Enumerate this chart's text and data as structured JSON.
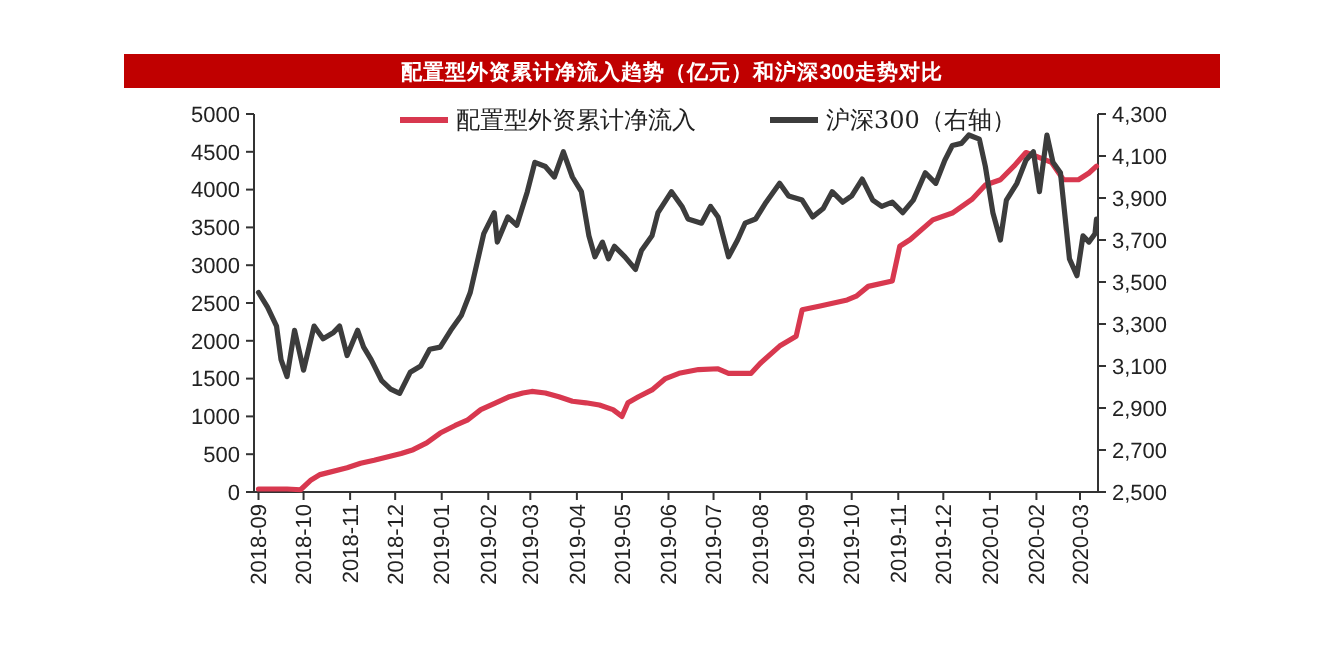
{
  "chart_data": {
    "type": "line",
    "title": "配置型外资累计净流入趋势（亿元）和沪深300走势对比",
    "xlim": [
      "2018-08-29",
      "2020-03-13"
    ],
    "xticks": [
      "2018-09",
      "2018-10",
      "2018-11",
      "2018-12",
      "2019-01",
      "2019-02",
      "2019-03",
      "2019-04",
      "2019-05",
      "2019-06",
      "2019-07",
      "2019-08",
      "2019-09",
      "2019-10",
      "2019-11",
      "2019-12",
      "2020-01",
      "2020-02",
      "2020-03"
    ],
    "ylim": [
      0,
      5000
    ],
    "yticks": [
      0,
      500,
      1000,
      1500,
      2000,
      2500,
      3000,
      3500,
      4000,
      4500,
      5000
    ],
    "y2lim": [
      2500,
      4300
    ],
    "y2ticks": [
      {
        "value": 2500,
        "label": "2,500"
      },
      {
        "value": 2700,
        "label": "2,700"
      },
      {
        "value": 2900,
        "label": "2,900"
      },
      {
        "value": 3100,
        "label": "3,100"
      },
      {
        "value": 3300,
        "label": "3,300"
      },
      {
        "value": 3500,
        "label": "3,500"
      },
      {
        "value": 3700,
        "label": "3,700"
      },
      {
        "value": 3900,
        "label": "3,900"
      },
      {
        "value": 4100,
        "label": "4,100"
      },
      {
        "value": 4300,
        "label": "4,300"
      }
    ],
    "grid": false,
    "legend": "top",
    "marker": "none",
    "line_style": "solid",
    "series": [
      {
        "name": "配置型外资累计净流入",
        "color": "#d8384f",
        "axis": "y",
        "x": [
          "2018-09-01",
          "2018-09-20",
          "2018-09-29",
          "2018-10-06",
          "2018-10-12",
          "2018-10-30",
          "2018-11-08",
          "2018-11-17",
          "2018-12-05",
          "2018-12-13",
          "2018-12-22",
          "2018-12-31",
          "2019-01-10",
          "2019-01-18",
          "2019-01-27",
          "2019-02-06",
          "2019-02-15",
          "2019-02-24",
          "2019-03-02",
          "2019-03-11",
          "2019-03-20",
          "2019-03-29",
          "2019-04-07",
          "2019-04-16",
          "2019-04-25",
          "2019-05-01",
          "2019-05-05",
          "2019-05-12",
          "2019-05-21",
          "2019-05-30",
          "2019-06-08",
          "2019-06-21",
          "2019-07-04",
          "2019-07-11",
          "2019-07-26",
          "2019-08-01",
          "2019-08-14",
          "2019-08-25",
          "2019-08-29",
          "2019-09-10",
          "2019-09-28",
          "2019-10-04",
          "2019-10-12",
          "2019-10-28",
          "2019-11-02",
          "2019-11-09",
          "2019-11-24",
          "2019-12-07",
          "2019-12-20",
          "2019-12-29",
          "2020-01-08",
          "2020-01-17",
          "2020-01-25",
          "2020-02-01",
          "2020-02-11",
          "2020-02-19",
          "2020-02-29",
          "2020-03-07",
          "2020-03-12"
        ],
        "values": [
          40,
          40,
          30,
          160,
          230,
          320,
          380,
          420,
          510,
          560,
          650,
          780,
          880,
          950,
          1090,
          1180,
          1260,
          1310,
          1330,
          1310,
          1260,
          1200,
          1180,
          1150,
          1090,
          1000,
          1180,
          1260,
          1350,
          1500,
          1570,
          1620,
          1630,
          1570,
          1570,
          1700,
          1930,
          2060,
          2410,
          2460,
          2540,
          2590,
          2720,
          2790,
          3250,
          3340,
          3600,
          3690,
          3870,
          4060,
          4130,
          4310,
          4490,
          4440,
          4360,
          4130,
          4130,
          4220,
          4310
        ]
      },
      {
        "name": "沪深300（右轴）",
        "color": "#3c3c3c",
        "axis": "y2",
        "x": [
          "2018-09-01",
          "2018-09-07",
          "2018-09-13",
          "2018-09-16",
          "2018-09-20",
          "2018-09-25",
          "2018-10-01",
          "2018-10-08",
          "2018-10-14",
          "2018-10-21",
          "2018-10-25",
          "2018-10-30",
          "2018-11-06",
          "2018-11-10",
          "2018-11-15",
          "2018-11-22",
          "2018-11-28",
          "2018-12-04",
          "2018-12-11",
          "2018-12-18",
          "2018-12-24",
          "2018-12-31",
          "2019-01-07",
          "2019-01-14",
          "2019-01-20",
          "2019-01-29",
          "2019-02-05",
          "2019-02-07",
          "2019-02-14",
          "2019-02-20",
          "2019-02-27",
          "2019-03-04",
          "2019-03-11",
          "2019-03-17",
          "2019-03-23",
          "2019-03-29",
          "2019-04-04",
          "2019-04-09",
          "2019-04-13",
          "2019-04-18",
          "2019-04-22",
          "2019-04-26",
          "2019-05-03",
          "2019-05-10",
          "2019-05-14",
          "2019-05-21",
          "2019-05-25",
          "2019-06-03",
          "2019-06-10",
          "2019-06-14",
          "2019-06-23",
          "2019-06-29",
          "2019-07-04",
          "2019-07-11",
          "2019-07-17",
          "2019-07-22",
          "2019-07-29",
          "2019-08-05",
          "2019-08-14",
          "2019-08-20",
          "2019-08-29",
          "2019-09-05",
          "2019-09-12",
          "2019-09-18",
          "2019-09-25",
          "2019-10-01",
          "2019-10-08",
          "2019-10-15",
          "2019-10-21",
          "2019-10-28",
          "2019-11-04",
          "2019-11-11",
          "2019-11-19",
          "2019-11-26",
          "2019-12-02",
          "2019-12-07",
          "2019-12-13",
          "2019-12-18",
          "2019-12-25",
          "2019-12-29",
          "2020-01-03",
          "2020-01-08",
          "2020-01-12",
          "2020-01-19",
          "2020-01-25",
          "2020-01-30",
          "2020-02-03",
          "2020-02-08",
          "2020-02-12",
          "2020-02-17",
          "2020-02-23",
          "2020-02-28",
          "2020-03-03",
          "2020-03-07",
          "2020-03-11",
          "2020-03-12"
        ],
        "values": [
          3450,
          3380,
          3290,
          3130,
          3050,
          3270,
          3080,
          3290,
          3230,
          3260,
          3290,
          3150,
          3270,
          3190,
          3130,
          3030,
          2990,
          2970,
          3070,
          3100,
          3180,
          3190,
          3270,
          3340,
          3450,
          3730,
          3830,
          3690,
          3810,
          3770,
          3930,
          4070,
          4050,
          4000,
          4120,
          4000,
          3930,
          3720,
          3620,
          3690,
          3610,
          3670,
          3620,
          3560,
          3650,
          3720,
          3830,
          3930,
          3860,
          3800,
          3780,
          3860,
          3810,
          3620,
          3700,
          3780,
          3800,
          3880,
          3970,
          3910,
          3890,
          3810,
          3850,
          3930,
          3880,
          3910,
          3990,
          3890,
          3860,
          3880,
          3830,
          3890,
          4020,
          3970,
          4080,
          4150,
          4160,
          4200,
          4180,
          4050,
          3830,
          3700,
          3890,
          3970,
          4080,
          4120,
          3930,
          4200,
          4070,
          4020,
          3610,
          3530,
          3720,
          3690,
          3730,
          3800
        ]
      }
    ]
  }
}
